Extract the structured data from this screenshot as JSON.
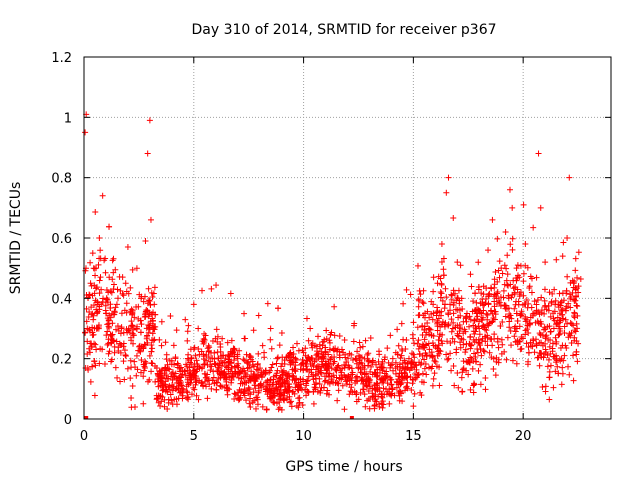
{
  "chart_data": {
    "type": "scatter",
    "title": "Day 310 of 2014, SRMTID for receiver p367",
    "xlabel": "GPS time / hours",
    "ylabel": "SRMTID / TECUs",
    "xlim": [
      0,
      24
    ],
    "ylim": [
      0,
      1.2
    ],
    "x_ticks": [
      0,
      5,
      10,
      15,
      20
    ],
    "x_tick_labels": [
      "0",
      "5",
      "10",
      "15",
      "20"
    ],
    "y_ticks": [
      0,
      0.2,
      0.4,
      0.6,
      0.8,
      1,
      1.2
    ],
    "y_tick_labels": [
      "0",
      "0.2",
      "0.4",
      "0.6",
      "0.8",
      "1",
      "1.2"
    ],
    "grid": true,
    "marker": "plus",
    "series_color": "#ff0000",
    "sample_points_x": [
      0.05,
      0.1,
      0.15,
      0.3,
      0.4,
      0.55,
      0.7,
      0.85,
      1.0,
      1.1,
      1.3,
      1.5,
      1.7,
      1.9,
      2.0,
      2.2,
      2.4,
      2.6,
      2.8,
      2.9,
      3.0,
      3.05,
      3.2,
      3.4,
      3.6,
      3.8,
      4.0,
      4.3,
      4.6,
      4.9,
      5.0,
      5.2,
      5.5,
      5.8,
      6.1,
      6.4,
      6.7,
      7.0,
      7.3,
      7.6,
      7.9,
      8.2,
      8.5,
      8.8,
      9.1,
      9.4,
      9.7,
      10.0,
      10.3,
      10.6,
      10.9,
      11.2,
      11.5,
      11.8,
      12.1,
      12.4,
      12.7,
      13.0,
      13.3,
      13.6,
      13.9,
      14.2,
      14.5,
      14.8,
      15.1,
      15.4,
      15.7,
      15.9,
      16.1,
      16.3,
      16.5,
      16.6,
      16.8,
      17.0,
      17.2,
      17.4,
      17.6,
      17.8,
      18.0,
      18.2,
      18.4,
      18.6,
      18.8,
      19.0,
      19.2,
      19.4,
      19.5,
      19.7,
      19.9,
      20.1,
      20.3,
      20.5,
      20.7,
      20.8,
      21.0,
      21.2,
      21.4,
      21.6,
      21.8,
      22.0,
      22.1,
      22.3,
      22.5
    ],
    "sample_points_y": [
      0.95,
      1.01,
      0.3,
      0.45,
      0.55,
      0.5,
      0.6,
      0.74,
      0.35,
      0.42,
      0.28,
      0.38,
      0.3,
      0.45,
      0.57,
      0.35,
      0.3,
      0.4,
      0.59,
      0.88,
      0.99,
      0.66,
      0.38,
      0.14,
      0.12,
      0.18,
      0.15,
      0.12,
      0.16,
      0.2,
      0.38,
      0.3,
      0.15,
      0.1,
      0.18,
      0.14,
      0.12,
      0.2,
      0.16,
      0.14,
      0.18,
      0.22,
      0.3,
      0.2,
      0.16,
      0.18,
      0.25,
      0.22,
      0.3,
      0.24,
      0.2,
      0.18,
      0.16,
      0.22,
      0.13,
      0.2,
      0.24,
      0.12,
      0.18,
      0.16,
      0.1,
      0.22,
      0.14,
      0.2,
      0.18,
      0.24,
      0.3,
      0.38,
      0.45,
      0.58,
      0.75,
      0.8,
      0.3,
      0.52,
      0.4,
      0.34,
      0.48,
      0.36,
      0.3,
      0.44,
      0.56,
      0.66,
      0.4,
      0.5,
      0.62,
      0.76,
      0.7,
      0.5,
      0.42,
      0.58,
      0.44,
      0.35,
      0.88,
      0.7,
      0.52,
      0.42,
      0.3,
      0.38,
      0.54,
      0.6,
      0.8,
      0.45,
      0.25
    ]
  }
}
